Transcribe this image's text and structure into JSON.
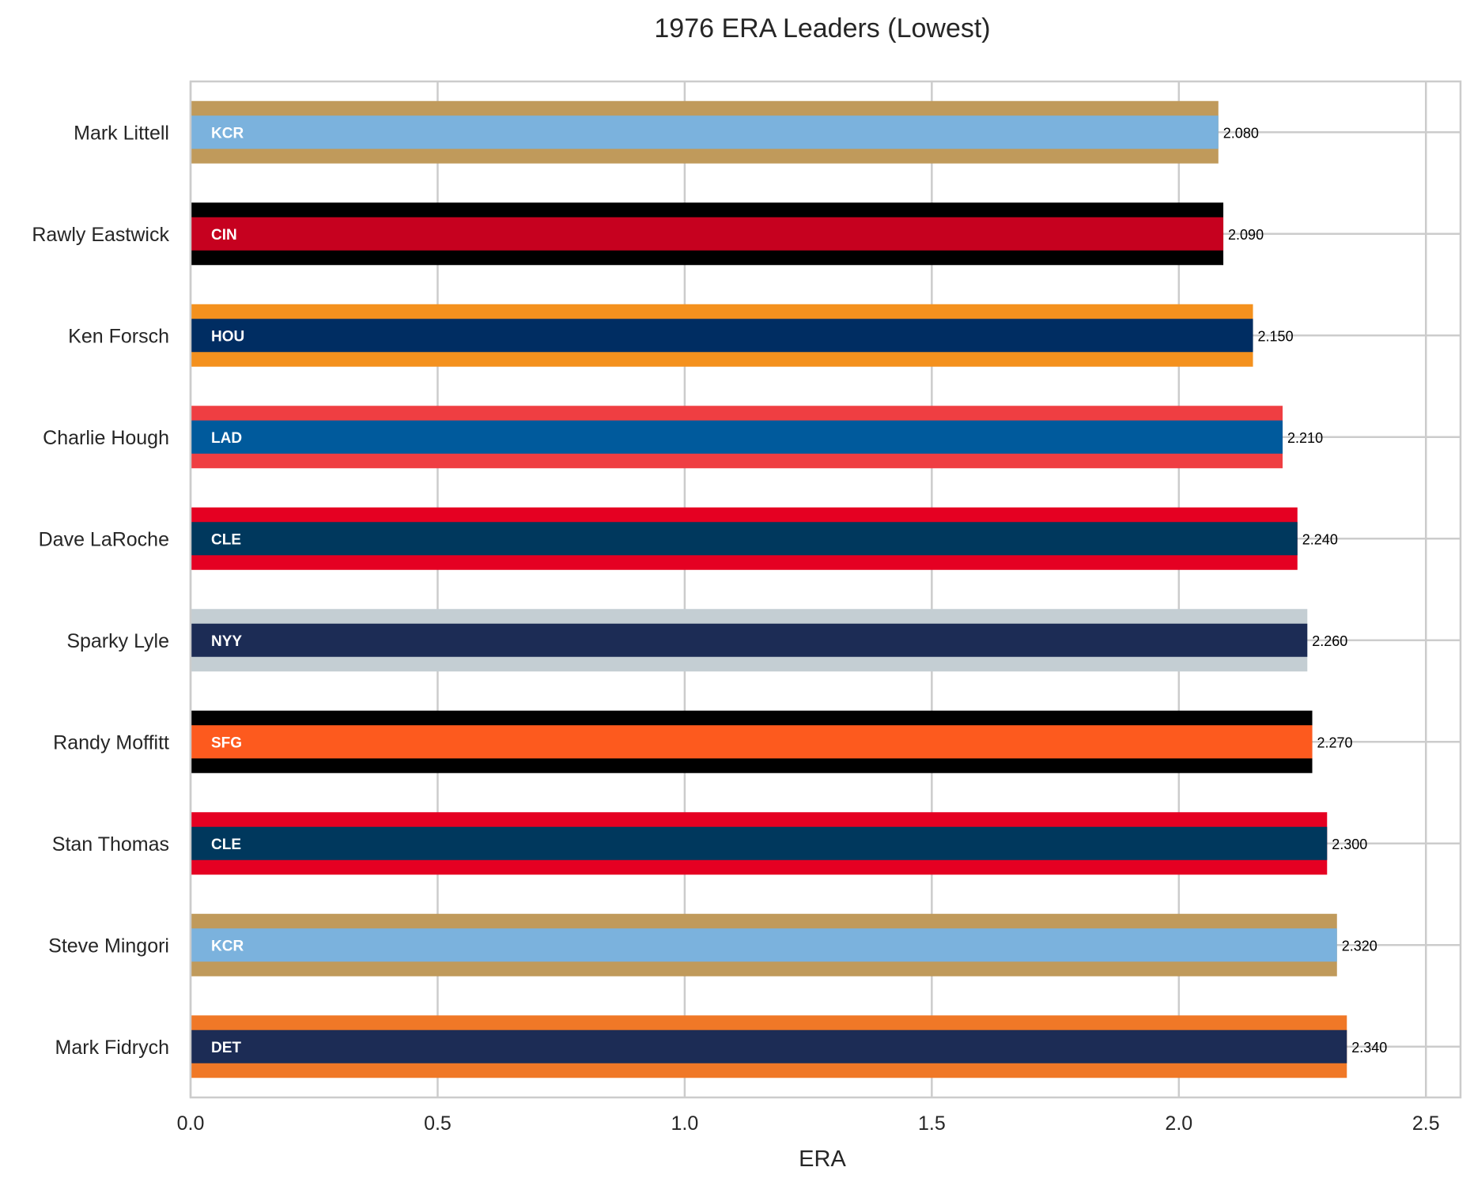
{
  "chart_data": {
    "type": "bar",
    "orientation": "horizontal",
    "title": "1976 ERA Leaders (Lowest)",
    "xlabel": "ERA",
    "ylabel": "",
    "xlim": [
      0,
      2.57
    ],
    "xticks": [
      "0.0",
      "0.5",
      "1.0",
      "1.5",
      "2.0",
      "2.5"
    ],
    "grid": true,
    "bars": [
      {
        "player": "Mark Littell",
        "team": "KCR",
        "value": 2.08,
        "value_label": "2.080",
        "primary": "#7BB2DD",
        "secondary": "#C09A5B"
      },
      {
        "player": "Rawly Eastwick",
        "team": "CIN",
        "value": 2.09,
        "value_label": "2.090",
        "primary": "#C6011F",
        "secondary": "#000000"
      },
      {
        "player": "Ken Forsch",
        "team": "HOU",
        "value": 2.15,
        "value_label": "2.150",
        "primary": "#002D62",
        "secondary": "#F4911E"
      },
      {
        "player": "Charlie Hough",
        "team": "LAD",
        "value": 2.21,
        "value_label": "2.210",
        "primary": "#005A9C",
        "secondary": "#EF3E42"
      },
      {
        "player": "Dave LaRoche",
        "team": "CLE",
        "value": 2.24,
        "value_label": "2.240",
        "primary": "#00385D",
        "secondary": "#E50022"
      },
      {
        "player": "Sparky Lyle",
        "team": "NYY",
        "value": 2.26,
        "value_label": "2.260",
        "primary": "#1C2C55",
        "secondary": "#C4CED3"
      },
      {
        "player": "Randy Moffitt",
        "team": "SFG",
        "value": 2.27,
        "value_label": "2.270",
        "primary": "#FD5A1E",
        "secondary": "#000000"
      },
      {
        "player": "Stan Thomas",
        "team": "CLE",
        "value": 2.3,
        "value_label": "2.300",
        "primary": "#00385D",
        "secondary": "#E50022"
      },
      {
        "player": "Steve Mingori",
        "team": "KCR",
        "value": 2.32,
        "value_label": "2.320",
        "primary": "#7BB2DD",
        "secondary": "#C09A5B"
      },
      {
        "player": "Mark Fidrych",
        "team": "DET",
        "value": 2.34,
        "value_label": "2.340",
        "primary": "#1C2C55",
        "secondary": "#F07827"
      }
    ]
  }
}
